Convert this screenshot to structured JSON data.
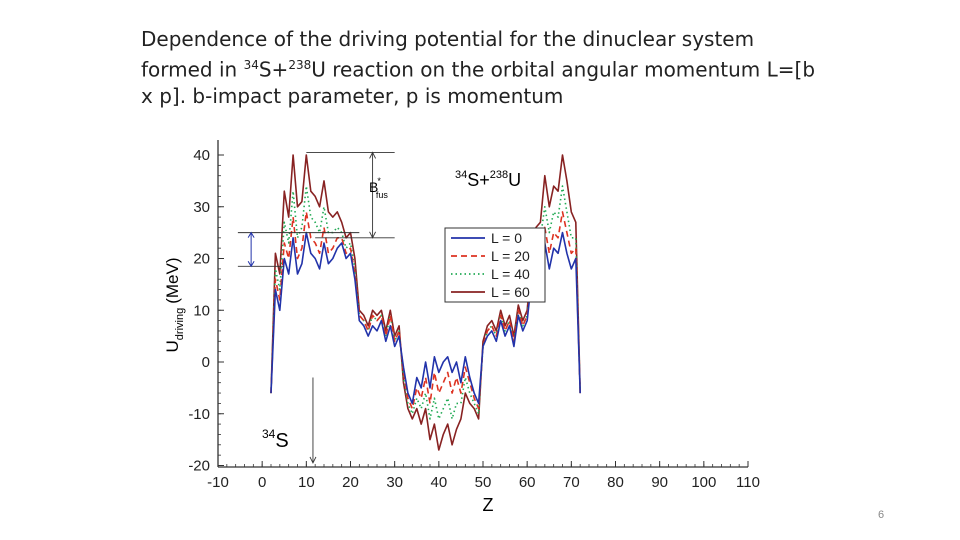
{
  "caption": {
    "line1": "Dependence of the driving potential for the dinuclear system",
    "line2_pre": "formed in ",
    "iso1_mass": "34",
    "iso1_sym": "S+",
    "iso2_mass": "238",
    "iso2_sym": "U reaction on the orbital angular momentum L=[b",
    "line3": "x p].  b-impact parameter, p is momentum"
  },
  "slide_number": "6",
  "chart_data": {
    "type": "line",
    "xlabel": "Z",
    "ylabel_main": "U",
    "ylabel_sub": "driving",
    "ylabel_unit": "(MeV)",
    "xlim": [
      -10,
      110
    ],
    "ylim": [
      -20,
      42
    ],
    "x_ticks": [
      -10,
      0,
      10,
      20,
      30,
      40,
      50,
      60,
      70,
      80,
      90,
      100,
      110
    ],
    "y_ticks": [
      -20,
      -10,
      0,
      10,
      20,
      30,
      40
    ],
    "annotations": {
      "reaction": {
        "mass1": "34",
        "sym1": "S+",
        "mass2": "238",
        "sym2": "U"
      },
      "projectile": {
        "mass": "34",
        "sym": "S"
      },
      "barrier": {
        "main": "B",
        "sup": "*",
        "sub": "fus"
      }
    },
    "legend": {
      "position": "center-right"
    },
    "series": [
      {
        "name": "L = 0",
        "color": "#2233aa",
        "dash": "solid",
        "values": [
          -6,
          14,
          10,
          20,
          17,
          24,
          17,
          19,
          25,
          21,
          20,
          18,
          23,
          19,
          20,
          22,
          23,
          20,
          21,
          16,
          8,
          7,
          5,
          7,
          6,
          8,
          4,
          7,
          3,
          5,
          -1,
          -6,
          -8,
          -3,
          -5,
          0,
          -5,
          1,
          -2,
          0,
          1,
          -2,
          0,
          -4,
          1,
          -3,
          -6,
          -8,
          3,
          5,
          6,
          4,
          8,
          5,
          7,
          3,
          9,
          6,
          8,
          16,
          20,
          20,
          23,
          18,
          22,
          21,
          25,
          21,
          18,
          20,
          -6
        ]
      },
      {
        "name": "L = 20",
        "color": "#dd3322",
        "dash": "dashed",
        "values": [
          -6,
          16,
          12,
          23,
          20,
          28,
          20,
          22,
          29,
          24,
          23,
          21,
          26,
          21,
          22,
          24,
          24,
          21,
          22,
          17,
          9,
          8,
          6,
          9,
          8,
          9,
          5,
          9,
          4,
          6,
          -2,
          -7,
          -9,
          -5,
          -7,
          -3,
          -8,
          -2,
          -6,
          -4,
          -2,
          -6,
          -3,
          -6,
          -1,
          -4,
          -7,
          -9,
          3,
          6,
          7,
          5,
          9,
          6,
          8,
          4,
          10,
          7,
          9,
          17,
          21,
          22,
          26,
          21,
          25,
          24,
          29,
          25,
          21,
          22,
          -6
        ]
      },
      {
        "name": "L = 40",
        "color": "#22aa55",
        "dash": "dotted",
        "values": [
          -6,
          18,
          14,
          27,
          23,
          33,
          24,
          26,
          34,
          28,
          27,
          25,
          30,
          25,
          25,
          26,
          25,
          22,
          23,
          18,
          9,
          8,
          6,
          9,
          8,
          9,
          5,
          9,
          4,
          6,
          -3,
          -8,
          -10,
          -7,
          -9,
          -6,
          -11,
          -7,
          -11,
          -9,
          -7,
          -11,
          -8,
          -8,
          -3,
          -6,
          -8,
          -10,
          3,
          6,
          7,
          5,
          9,
          6,
          8,
          4,
          10,
          7,
          9,
          18,
          23,
          24,
          30,
          25,
          29,
          28,
          34,
          29,
          24,
          24,
          -6
        ]
      },
      {
        "name": "L = 60",
        "color": "#882222",
        "dash": "solid",
        "values": [
          -6,
          21,
          17,
          33,
          28,
          40,
          30,
          31,
          40,
          33,
          32,
          30,
          35,
          29,
          28,
          29,
          27,
          24,
          25,
          20,
          10,
          9,
          7,
          10,
          9,
          10,
          6,
          10,
          5,
          7,
          -4,
          -9,
          -11,
          -9,
          -12,
          -9,
          -15,
          -12,
          -17,
          -14,
          -12,
          -16,
          -13,
          -11,
          -6,
          -8,
          -9,
          -11,
          4,
          7,
          8,
          6,
          10,
          7,
          9,
          5,
          11,
          8,
          10,
          20,
          26,
          27,
          36,
          30,
          34,
          33,
          40,
          35,
          29,
          27,
          -6
        ]
      }
    ]
  }
}
